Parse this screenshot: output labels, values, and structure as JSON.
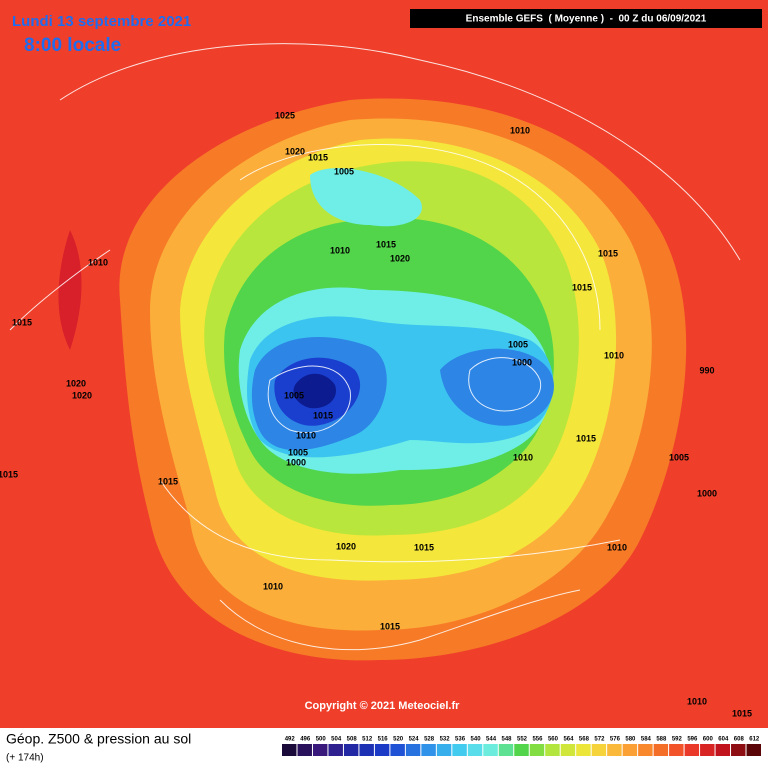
{
  "header": {
    "date": "Lundi 13 septembre 2021",
    "time": "8:00 locale",
    "model": "Ensemble GEFS  ( Moyenne )  -  00 Z du 06/09/2021"
  },
  "map": {
    "pressure_labels": [
      "1025",
      "1010",
      "1020",
      "1015",
      "1005",
      "1010",
      "1010",
      "1015",
      "1020",
      "1015",
      "1015",
      "1015",
      "1005",
      "1010",
      "1000",
      "990",
      "1020",
      "1020",
      "1005",
      "1015",
      "1010",
      "1015",
      "1005",
      "1000",
      "1010",
      "1005",
      "1015",
      "1015",
      "1000",
      "1020",
      "1015",
      "1010",
      "1010",
      "1015",
      "1010",
      "1015"
    ],
    "copyright": "Copyright © 2021 Meteociel.fr"
  },
  "footer": {
    "title": "Géop. Z500 & pression au sol",
    "subtitle": "(+ 174h)",
    "legend_levels": [
      492,
      496,
      500,
      504,
      508,
      512,
      516,
      520,
      524,
      528,
      532,
      536,
      540,
      544,
      548,
      552,
      556,
      560,
      564,
      568,
      572,
      576,
      580,
      584,
      588,
      592,
      596,
      600,
      604,
      608,
      612
    ]
  }
}
